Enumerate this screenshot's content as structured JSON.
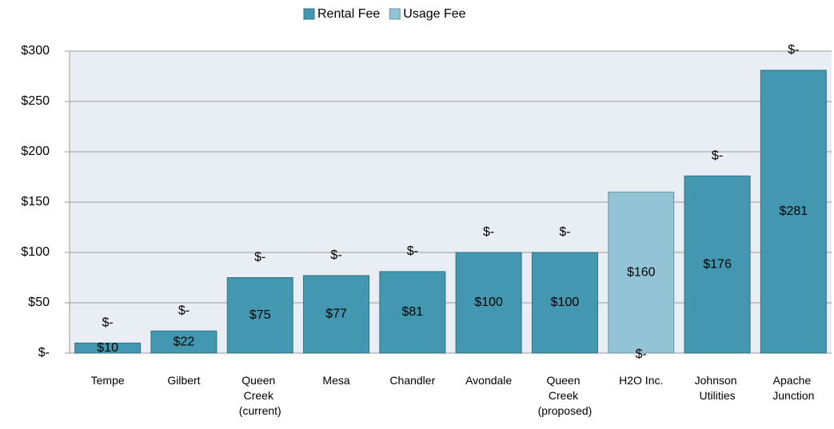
{
  "chart_data": {
    "type": "stacked_bar",
    "categories": [
      "Tempe",
      "Gilbert",
      "Queen Creek (current)",
      "Mesa",
      "Chandler",
      "Avondale",
      "Queen Creek (proposed)",
      "H2O Inc.",
      "Johnson Utilities",
      "Apache Junction"
    ],
    "series": [
      {
        "name": "Rental Fee",
        "color": "#4397b0",
        "values": [
          10,
          22,
          75,
          77,
          81,
          100,
          100,
          0,
          176,
          281
        ],
        "value_labels": [
          "$10",
          "$22",
          "$75",
          "$77",
          "$81",
          "$100",
          "$100",
          "$-",
          "$176",
          "$281"
        ]
      },
      {
        "name": "Usage Fee",
        "color": "#93c4d6",
        "values": [
          0,
          0,
          0,
          0,
          0,
          0,
          0,
          160,
          0,
          0
        ],
        "value_labels": [
          "$-",
          "$-",
          "$-",
          "$-",
          "$-",
          "$-",
          "$-",
          "$160",
          "$-",
          "$-"
        ]
      }
    ],
    "ylim": [
      0,
      300
    ],
    "yticks": [
      {
        "value": 0,
        "label": "$-"
      },
      {
        "value": 50,
        "label": "$50"
      },
      {
        "value": 100,
        "label": "$100"
      },
      {
        "value": 150,
        "label": "$150"
      },
      {
        "value": 200,
        "label": "$200"
      },
      {
        "value": 250,
        "label": "$250"
      },
      {
        "value": 300,
        "label": "$300"
      }
    ],
    "grid": true,
    "legend": "top"
  }
}
